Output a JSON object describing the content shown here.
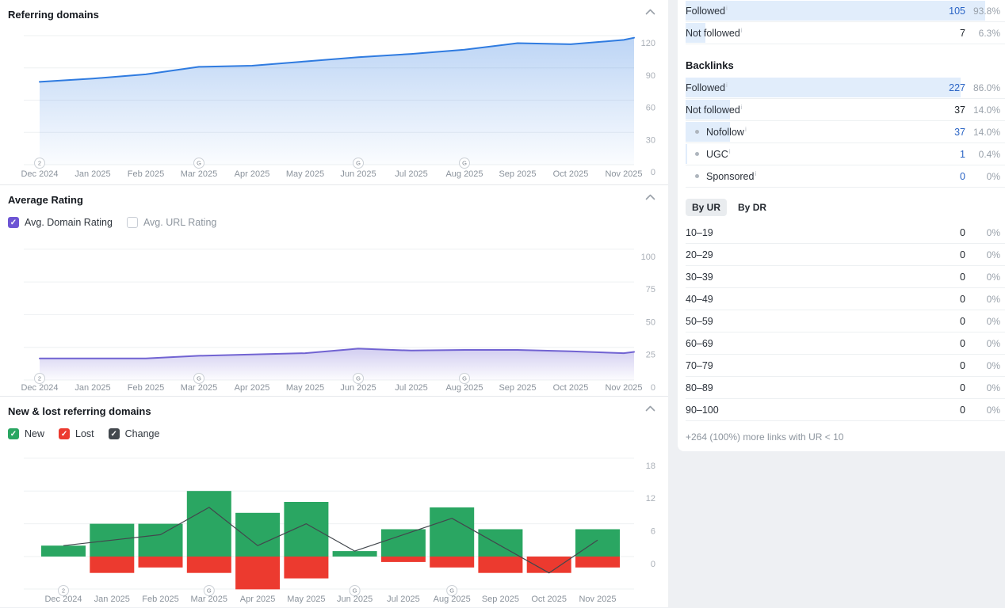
{
  "colors": {
    "accent_blue": "#2f7be0",
    "value_blue": "#2a64c5",
    "row_highlight": "#e1edfb",
    "accent_purple": "#7163d2",
    "checkbox_purple": "#6d55d4",
    "green": "#2aa662",
    "red": "#ec3a2f",
    "change_dark": "#42474d",
    "page_bg": "#eef0f3"
  },
  "sections": {
    "referring_domains": {
      "title": "Referring domains",
      "chart_data": {
        "type": "area",
        "title": "Referring domains",
        "x": [
          "Dec 2024",
          "Jan 2025",
          "Feb 2025",
          "Mar 2025",
          "Apr 2025",
          "May 2025",
          "Jun 2025",
          "Jul 2025",
          "Aug 2025",
          "Sep 2025",
          "Oct 2025",
          "Nov 2025"
        ],
        "values": [
          77,
          80,
          84,
          91,
          92,
          96,
          100,
          103,
          107,
          113,
          112,
          116
        ],
        "end_value": 118,
        "ylim": [
          0,
          120
        ],
        "yticks": [
          0,
          30,
          60,
          90,
          120
        ],
        "grid": true,
        "legend_position": "none",
        "line_color": "#2f7be0",
        "axis_markers": [
          {
            "index": 0,
            "glyph": "2"
          },
          {
            "index": 3,
            "glyph": "G"
          },
          {
            "index": 6,
            "glyph": "G"
          },
          {
            "index": 8,
            "glyph": "G"
          }
        ]
      }
    },
    "average_rating": {
      "title": "Average Rating",
      "checkboxes": [
        {
          "label": "Avg. Domain Rating",
          "checked": true
        },
        {
          "label": "Avg. URL Rating",
          "checked": false
        }
      ],
      "chart_data": {
        "type": "line",
        "title": "Average Rating",
        "series_name": "Avg. Domain Rating",
        "x": [
          "Dec 2024",
          "Jan 2025",
          "Feb 2025",
          "Mar 2025",
          "Apr 2025",
          "May 2025",
          "Jun 2025",
          "Jul 2025",
          "Aug 2025",
          "Sep 2025",
          "Oct 2025",
          "Nov 2025"
        ],
        "values": [
          16.5,
          16.5,
          16.5,
          18.5,
          19.5,
          20.5,
          24,
          22.5,
          23,
          23,
          22,
          20.5
        ],
        "end_value": 21.5,
        "ylim": [
          0,
          100
        ],
        "yticks": [
          0,
          25,
          50,
          75,
          100
        ],
        "grid": true,
        "legend_position": "none",
        "line_color": "#7163d2",
        "axis_markers": [
          {
            "index": 0,
            "glyph": "2"
          },
          {
            "index": 3,
            "glyph": "G"
          },
          {
            "index": 6,
            "glyph": "G"
          },
          {
            "index": 8,
            "glyph": "G"
          }
        ]
      }
    },
    "new_lost_referring_domains": {
      "title": "New & lost referring domains",
      "checkboxes": [
        {
          "label": "New",
          "checked": true
        },
        {
          "label": "Lost",
          "checked": true
        },
        {
          "label": "Change",
          "checked": true
        }
      ],
      "chart_data": {
        "type": "bar",
        "title": "New & lost referring domains",
        "categories": [
          "Dec 2024",
          "Jan 2025",
          "Feb 2025",
          "Mar 2025",
          "Apr 2025",
          "May 2025",
          "Jun 2025",
          "Jul 2025",
          "Aug 2025",
          "Sep 2025",
          "Oct 2025",
          "Nov 2025"
        ],
        "series": [
          {
            "name": "New",
            "type": "bar",
            "color": "#2aa662",
            "values": [
              2,
              6,
              6,
              12,
              8,
              10,
              1,
              5,
              9,
              5,
              0,
              5
            ]
          },
          {
            "name": "Lost",
            "type": "bar",
            "color": "#ec3a2f",
            "values": [
              0,
              3,
              2,
              3,
              6,
              4,
              0,
              1,
              2,
              3,
              3,
              2
            ]
          },
          {
            "name": "Change",
            "type": "line",
            "color": "#42474d",
            "values": [
              2,
              3,
              4,
              9,
              2,
              6,
              1,
              4,
              7,
              2,
              -3,
              3
            ]
          }
        ],
        "yticks": [
          0,
          6,
          12,
          18
        ],
        "ylim": [
          -6,
          18
        ],
        "grid": true,
        "axis_markers": [
          {
            "index": 0,
            "glyph": "2"
          },
          {
            "index": 3,
            "glyph": "G"
          },
          {
            "index": 6,
            "glyph": "G"
          },
          {
            "index": 8,
            "glyph": "G"
          }
        ]
      }
    }
  },
  "side_panel": {
    "top_block": {
      "rows": [
        {
          "label": "Followed",
          "info": true,
          "value": "105",
          "pct": "93.8%",
          "bar": 93.8,
          "blue": true,
          "bullet": false
        },
        {
          "label": "Not followed",
          "info": true,
          "value": "7",
          "pct": "6.3%",
          "bar": 6.3,
          "blue": false,
          "bullet": false
        }
      ]
    },
    "backlinks": {
      "title": "Backlinks",
      "rows": [
        {
          "label": "Followed",
          "info": true,
          "value": "227",
          "pct": "86.0%",
          "bar": 86.0,
          "blue": true,
          "bullet": false
        },
        {
          "label": "Not followed",
          "info": true,
          "value": "37",
          "pct": "14.0%",
          "bar": 14.0,
          "blue": false,
          "bullet": false
        },
        {
          "label": "Nofollow",
          "info": true,
          "value": "37",
          "pct": "14.0%",
          "bar": 14.0,
          "blue": true,
          "bullet": true
        },
        {
          "label": "UGC",
          "info": true,
          "value": "1",
          "pct": "0.4%",
          "bar": 0.4,
          "blue": true,
          "bullet": true
        },
        {
          "label": "Sponsored",
          "info": true,
          "value": "0",
          "pct": "0%",
          "bar": 0,
          "blue": true,
          "bullet": true
        }
      ]
    },
    "rating_tabs": [
      {
        "label": "By UR",
        "active": true
      },
      {
        "label": "By DR",
        "active": false
      }
    ],
    "ur_distribution": {
      "rows": [
        {
          "label": "10–19",
          "value": "0",
          "pct": "0%"
        },
        {
          "label": "20–29",
          "value": "0",
          "pct": "0%"
        },
        {
          "label": "30–39",
          "value": "0",
          "pct": "0%"
        },
        {
          "label": "40–49",
          "value": "0",
          "pct": "0%"
        },
        {
          "label": "50–59",
          "value": "0",
          "pct": "0%"
        },
        {
          "label": "60–69",
          "value": "0",
          "pct": "0%"
        },
        {
          "label": "70–79",
          "value": "0",
          "pct": "0%"
        },
        {
          "label": "80–89",
          "value": "0",
          "pct": "0%"
        },
        {
          "label": "90–100",
          "value": "0",
          "pct": "0%"
        }
      ]
    },
    "footnote": "+264 (100%) more links with UR < 10"
  }
}
